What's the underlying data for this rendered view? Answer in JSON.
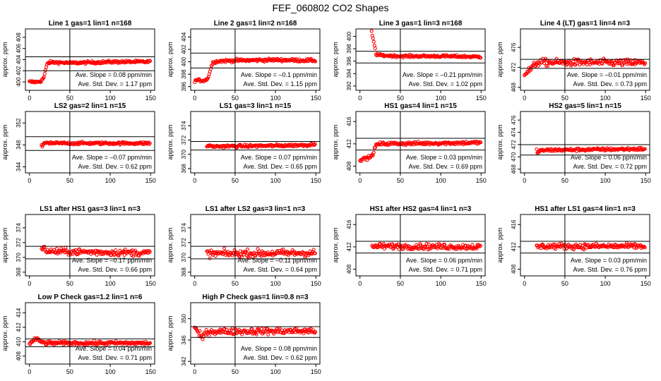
{
  "title": "FEF_060802  CO2 Shapes",
  "colors": {
    "points": "#ff0000",
    "axes": "#000000",
    "background": "#ffffff"
  },
  "chart_data": [
    {
      "type": "scatter",
      "title": "Line 1 gas=1 lin=1 n=168",
      "ylabel": "approx. ppm",
      "xlim": [
        -5,
        155
      ],
      "ylim": [
        398.5,
        409.5
      ],
      "xticks": [
        0,
        50,
        100,
        150
      ],
      "yticks": [
        400,
        402,
        404,
        406,
        408
      ],
      "xticklabels": [
        "0",
        "50",
        "100",
        "150"
      ],
      "yticklabels": [
        "400",
        "402",
        "404",
        "406",
        "408"
      ],
      "hlines": [
        404.5,
        402.0
      ],
      "vline": 50,
      "annotations": [
        "Ave. Slope = 0.08  ppm/min",
        "Ave. Std. Dev. = 1.17  ppm"
      ],
      "profile": {
        "x": [
          0,
          5,
          10,
          15,
          18,
          20,
          22,
          25,
          35,
          50,
          80,
          110,
          150
        ],
        "y": [
          400.0,
          400.0,
          400.0,
          400.2,
          400.9,
          402.1,
          403.3,
          403.5,
          403.5,
          403.4,
          403.5,
          403.6,
          403.6
        ]
      },
      "noise": 0.12
    },
    {
      "type": "scatter",
      "title": "Line 2 gas=1 lin=2 n=168",
      "ylabel": "approx. ppm",
      "xlim": [
        -5,
        155
      ],
      "ylim": [
        395.4,
        405.3
      ],
      "xticks": [
        0,
        50,
        100,
        150
      ],
      "yticks": [
        396,
        398,
        400,
        402,
        404
      ],
      "xticklabels": [
        "0",
        "50",
        "100",
        "150"
      ],
      "yticklabels": [
        "396",
        "398",
        "400",
        "402",
        "404"
      ],
      "hlines": [
        401.4,
        399.0
      ],
      "vline": 50,
      "annotations": [
        "Ave. Slope = –0.1  ppm/min",
        "Ave. Std. Dev. = 1.15  ppm"
      ],
      "profile": {
        "x": [
          0,
          5,
          10,
          15,
          18,
          20,
          22,
          24,
          30,
          50,
          100,
          150
        ],
        "y": [
          397.0,
          397.0,
          397.0,
          397.1,
          398.0,
          399.0,
          399.8,
          400.0,
          400.1,
          400.2,
          400.3,
          400.2
        ]
      },
      "noise": 0.12
    },
    {
      "type": "scatter",
      "title": "Line 3 gas=1 lin=3 n=168",
      "ylabel": "approx. ppm",
      "xlim": [
        -5,
        155
      ],
      "ylim": [
        391.3,
        401.2
      ],
      "xticks": [
        0,
        50,
        100,
        150
      ],
      "yticks": [
        392,
        394,
        396,
        398,
        400
      ],
      "xticklabels": [
        "0",
        "50",
        "100",
        "150"
      ],
      "yticklabels": [
        "392",
        "394",
        "396",
        "398",
        "400"
      ],
      "hlines": [
        397.6,
        395.7
      ],
      "vline": 50,
      "annotations": [
        "Ave. Slope = –0.21  ppm/min",
        "Ave. Std. Dev. = 1.02  ppm"
      ],
      "profile": {
        "x": [
          0,
          5,
          10,
          14,
          16,
          18,
          20,
          22,
          30,
          50,
          100,
          150
        ],
        "y": [
          402.0,
          402.0,
          401.5,
          401.0,
          399.7,
          398.6,
          397.1,
          397.0,
          396.9,
          396.8,
          396.8,
          396.7
        ]
      },
      "noise": 0.1
    },
    {
      "type": "scatter",
      "title": "Line 4 (LT) gas=1 lin=4 n=3",
      "ylabel": "approx. ppm",
      "xlim": [
        -5,
        155
      ],
      "ylim": [
        467.4,
        479.7
      ],
      "xticks": [
        0,
        50,
        100,
        150
      ],
      "yticks": [
        468,
        472,
        476
      ],
      "xticklabels": [
        "0",
        "50",
        "100",
        "150"
      ],
      "yticklabels": [
        "468",
        "472",
        "476"
      ],
      "hlines": [
        473.6,
        471.8
      ],
      "vline": 50,
      "annotations": [
        "Ave. Slope = –0.01  ppm/min",
        "Ave. Std. Dev. = 0.73  ppm"
      ],
      "profile": {
        "x": [
          0,
          5,
          10,
          15,
          20,
          150
        ],
        "y": [
          470.8,
          471.3,
          472.0,
          472.9,
          473.0,
          472.9
        ]
      },
      "noise": 0.35
    },
    {
      "type": "scatter",
      "title": "LS2 gas=2 lin=1 n=15",
      "ylabel": "approx. ppm",
      "xlim": [
        -5,
        155
      ],
      "ylim": [
        342.9,
        354.1
      ],
      "xticks": [
        0,
        50,
        100,
        150
      ],
      "yticks": [
        344,
        348,
        352
      ],
      "xticklabels": [
        "0",
        "50",
        "100",
        "150"
      ],
      "yticklabels": [
        "344",
        "348",
        "352"
      ],
      "hlines": [
        349.5,
        347.0
      ],
      "vline": 50,
      "annotations": [
        "Ave. Slope = –0.07  ppm/min",
        "Ave. Std. Dev. = 0.62  ppm"
      ],
      "profile": {
        "x": [
          15,
          16,
          17,
          18,
          20,
          150
        ],
        "y": [
          348.0,
          347.7,
          348.2,
          348.4,
          348.3,
          348.3
        ]
      },
      "noise": 0.12
    },
    {
      "type": "scatter",
      "title": "LS1 gas=3 lin=1 n=15",
      "ylabel": "approx. ppm",
      "xlim": [
        -5,
        155
      ],
      "ylim": [
        367.4,
        376.0
      ],
      "xticks": [
        0,
        50,
        100,
        150
      ],
      "yticks": [
        368,
        370,
        372,
        374
      ],
      "xticklabels": [
        "0",
        "50",
        "100",
        "150"
      ],
      "yticklabels": [
        "368",
        "370",
        "372",
        "374"
      ],
      "hlines": [
        371.8,
        370.6
      ],
      "vline": 50,
      "annotations": [
        "Ave. Slope = 0.07  ppm/min",
        "Ave. Std. Dev. = 0.65  ppm"
      ],
      "profile": {
        "x": [
          15,
          17,
          20,
          100,
          140,
          150
        ],
        "y": [
          371.0,
          371.3,
          371.1,
          371.2,
          371.3,
          371.5
        ]
      },
      "noise": 0.1
    },
    {
      "type": "scatter",
      "title": "HS1 gas=4 lin=1 n=15",
      "ylabel": "approx. ppm",
      "xlim": [
        -5,
        155
      ],
      "ylim": [
        406.8,
        417.8
      ],
      "xticks": [
        0,
        50,
        100,
        150
      ],
      "yticks": [
        408,
        412,
        416
      ],
      "xticklabels": [
        "0",
        "50",
        "100",
        "150"
      ],
      "yticklabels": [
        "408",
        "412",
        "416"
      ],
      "hlines": [
        413.0,
        410.9
      ],
      "vline": 50,
      "annotations": [
        "Ave. Slope = 0.03  ppm/min",
        "Ave. Std. Dev. = 0.69  ppm"
      ],
      "profile": {
        "x": [
          0,
          5,
          10,
          15,
          18,
          20,
          25,
          150
        ],
        "y": [
          409.2,
          409.3,
          409.5,
          409.8,
          411.0,
          411.8,
          412.0,
          412.2
        ]
      },
      "noise": 0.15
    },
    {
      "type": "scatter",
      "title": "HS2 gas=5 lin=1 n=15",
      "ylabel": "approx. ppm",
      "xlim": [
        -5,
        155
      ],
      "ylim": [
        467.4,
        477.4
      ],
      "xticks": [
        0,
        50,
        100,
        150
      ],
      "yticks": [
        468,
        470,
        472,
        474,
        476
      ],
      "xticklabels": [
        "0",
        "50",
        "100",
        "150"
      ],
      "yticklabels": [
        "468",
        "470",
        "472",
        "474",
        "476"
      ],
      "hlines": [
        472.0,
        470.3
      ],
      "vline": 50,
      "annotations": [
        "Ave. Slope = 0.06  ppm/min",
        "Ave. Std. Dev. = 0.72  ppm"
      ],
      "profile": {
        "x": [
          15,
          16,
          18,
          20,
          25,
          150
        ],
        "y": [
          471.2,
          470.7,
          470.8,
          471.0,
          471.1,
          471.3
        ]
      },
      "noise": 0.12
    },
    {
      "type": "scatter",
      "title": "LS1 after HS1 gas=3 lin=1 n=3",
      "ylabel": "approx. ppm",
      "xlim": [
        -5,
        155
      ],
      "ylim": [
        367.5,
        375.8
      ],
      "xticks": [
        0,
        50,
        100,
        150
      ],
      "yticks": [
        368,
        370,
        372,
        374
      ],
      "xticklabels": [
        "0",
        "50",
        "100",
        "150"
      ],
      "yticklabels": [
        "368",
        "370",
        "372",
        "374"
      ],
      "hlines": [
        371.5,
        369.8
      ],
      "vline": 50,
      "annotations": [
        "Ave. Slope = –0.17  ppm/min",
        "Ave. Std. Dev. = 0.66  ppm"
      ],
      "profile": {
        "x": [
          15,
          18,
          20,
          25,
          150
        ],
        "y": [
          371.0,
          371.2,
          371.0,
          370.8,
          370.6
        ]
      },
      "noise": 0.22
    },
    {
      "type": "scatter",
      "title": "LS1 after LS2 gas=3 lin=1 n=3",
      "ylabel": "approx. ppm",
      "xlim": [
        -5,
        155
      ],
      "ylim": [
        367.5,
        375.8
      ],
      "xticks": [
        0,
        50,
        100,
        150
      ],
      "yticks": [
        368,
        370,
        372,
        374
      ],
      "xticklabels": [
        "0",
        "50",
        "100",
        "150"
      ],
      "yticklabels": [
        "368",
        "370",
        "372",
        "374"
      ],
      "hlines": [
        371.5,
        369.8
      ],
      "vline": 50,
      "annotations": [
        "Ave. Slope = –0.11  ppm/min",
        "Ave. Std. Dev. = 0.64  ppm"
      ],
      "profile": {
        "x": [
          15,
          20,
          150
        ],
        "y": [
          370.6,
          370.5,
          370.6
        ]
      },
      "noise": 0.25
    },
    {
      "type": "scatter",
      "title": "HS1 after HS2 gas=4 lin=1 n=3",
      "ylabel": "approx. ppm",
      "xlim": [
        -5,
        155
      ],
      "ylim": [
        406.8,
        417.8
      ],
      "xticks": [
        0,
        50,
        100,
        150
      ],
      "yticks": [
        408,
        412,
        416
      ],
      "xticklabels": [
        "0",
        "50",
        "100",
        "150"
      ],
      "yticklabels": [
        "408",
        "412",
        "416"
      ],
      "hlines": [
        413.0,
        410.9
      ],
      "vline": 50,
      "annotations": [
        "Ave. Slope = 0.06  ppm/min",
        "Ave. Std. Dev. = 0.71  ppm"
      ],
      "profile": {
        "x": [
          15,
          20,
          150
        ],
        "y": [
          412.0,
          412.1,
          412.0
        ]
      },
      "noise": 0.25
    },
    {
      "type": "scatter",
      "title": "HS1 after LS1 gas=4 lin=1 n=3",
      "ylabel": "approx. ppm",
      "xlim": [
        -5,
        155
      ],
      "ylim": [
        406.8,
        417.8
      ],
      "xticks": [
        0,
        50,
        100,
        150
      ],
      "yticks": [
        408,
        412,
        416
      ],
      "xticklabels": [
        "0",
        "50",
        "100",
        "150"
      ],
      "yticklabels": [
        "408",
        "412",
        "416"
      ],
      "hlines": [
        413.0,
        410.9
      ],
      "vline": 50,
      "annotations": [
        "Ave. Slope = 0.03  ppm/min",
        "Ave. Std. Dev. = 0.76  ppm"
      ],
      "profile": {
        "x": [
          15,
          20,
          150
        ],
        "y": [
          412.0,
          412.1,
          412.1
        ]
      },
      "noise": 0.25
    },
    {
      "type": "scatter",
      "title": "Low P Check gas=1.2 lin=1 n=6",
      "ylabel": "approx. ppm",
      "xlim": [
        -5,
        155
      ],
      "ylim": [
        406.9,
        415.4
      ],
      "xticks": [
        0,
        50,
        100,
        150
      ],
      "yticks": [
        408,
        410,
        412,
        414
      ],
      "xticklabels": [
        "0",
        "50",
        "100",
        "150"
      ],
      "yticklabels": [
        "408",
        "410",
        "412",
        "414"
      ],
      "hlines": [
        410.4,
        409.3
      ],
      "vline": 50,
      "annotations": [
        "Ave. Slope = 0.04  ppm/min",
        "Ave. Std. Dev. = 0.71  ppm"
      ],
      "profile": {
        "x": [
          0,
          5,
          8,
          12,
          20,
          150
        ],
        "y": [
          409.6,
          410.2,
          410.4,
          410.1,
          409.8,
          409.8
        ]
      },
      "noise": 0.13
    },
    {
      "type": "scatter",
      "title": "High P Check gas=1 lin=0.8 n=3",
      "ylabel": "approx. ppm",
      "xlim": [
        -5,
        155
      ],
      "ylim": [
        341.5,
        353.0
      ],
      "xticks": [
        0,
        50,
        100,
        150
      ],
      "yticks": [
        342,
        346,
        350
      ],
      "xticklabels": [
        "0",
        "50",
        "100",
        "150"
      ],
      "yticklabels": [
        "342",
        "346",
        "350"
      ],
      "hlines": [
        348.5,
        346.5
      ],
      "vline": 50,
      "annotations": [
        "Ave. Slope = 0.08  ppm/min",
        "Ave. Std. Dev. = 0.62  ppm"
      ],
      "profile": {
        "x": [
          0,
          5,
          10,
          15,
          20,
          150
        ],
        "y": [
          348.5,
          347.0,
          346.5,
          347.5,
          347.6,
          347.7
        ]
      },
      "noise": 0.3
    }
  ]
}
